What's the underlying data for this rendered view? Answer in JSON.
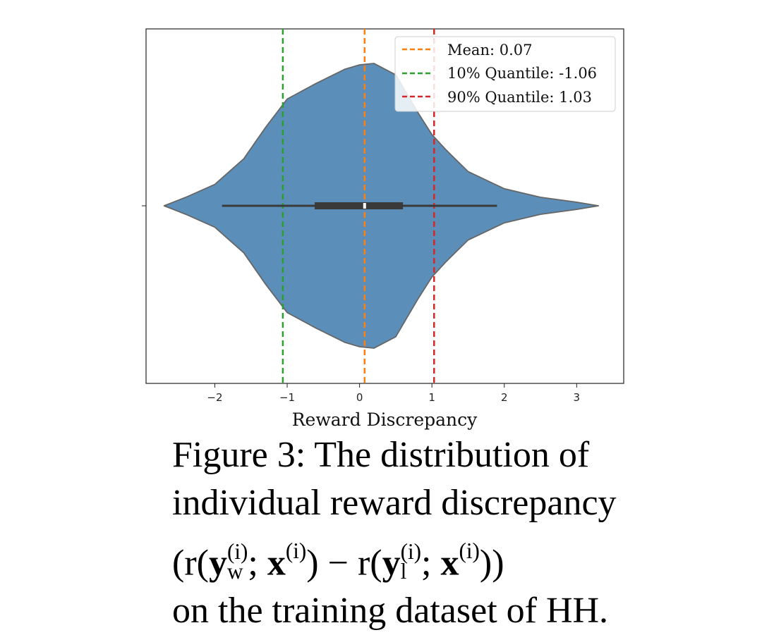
{
  "chart_data": {
    "type": "violin",
    "xlabel": "Reward Discrepancy",
    "xlim": [
      -2.95,
      3.65
    ],
    "xticks": [
      -2,
      -1,
      0,
      1,
      2,
      3
    ],
    "xtick_labels": [
      "−2",
      "−1",
      "0",
      "1",
      "2",
      "3"
    ],
    "violin": {
      "color": "#5b8fb9",
      "edge_color": "#666666",
      "min": -2.7,
      "max": 3.3,
      "whisker_low": -1.9,
      "whisker_high": 1.9,
      "q1": -0.62,
      "q3": 0.6,
      "median": 0.07,
      "density_profile": [
        [
          -2.7,
          0.0
        ],
        [
          -2.4,
          0.06
        ],
        [
          -2.0,
          0.15
        ],
        [
          -1.6,
          0.33
        ],
        [
          -1.3,
          0.55
        ],
        [
          -1.0,
          0.75
        ],
        [
          -0.6,
          0.86
        ],
        [
          -0.2,
          0.96
        ],
        [
          0.0,
          0.99
        ],
        [
          0.2,
          1.0
        ],
        [
          0.5,
          0.92
        ],
        [
          0.8,
          0.66
        ],
        [
          1.0,
          0.5
        ],
        [
          1.2,
          0.39
        ],
        [
          1.5,
          0.24
        ],
        [
          2.0,
          0.12
        ],
        [
          2.5,
          0.06
        ],
        [
          3.0,
          0.025
        ],
        [
          3.3,
          0.0
        ]
      ]
    },
    "reference_lines": [
      {
        "label": "Mean: 0.07",
        "x": 0.07,
        "color": "#ff7f0e",
        "style": "dashed"
      },
      {
        "label": "10% Quantile: -1.06",
        "x": -1.06,
        "color": "#2ca02c",
        "style": "dashed"
      },
      {
        "label": "90% Quantile: 1.03",
        "x": 1.03,
        "color": "#d62728",
        "style": "dashed"
      }
    ],
    "legend_position": "top-right"
  },
  "caption": {
    "line1": "Figure 3:  The distribution of",
    "line2": "individual reward discrepancy",
    "line3_open": "(r(",
    "y": "y",
    "sub_w": "w",
    "sup_i": "(i)",
    "semicolon": "; ",
    "x": "x",
    "minus": " − ",
    "r": "r(",
    "sub_l": "l",
    "close1": ")",
    "close2": "))",
    "line4": "on the training dataset of HH."
  }
}
